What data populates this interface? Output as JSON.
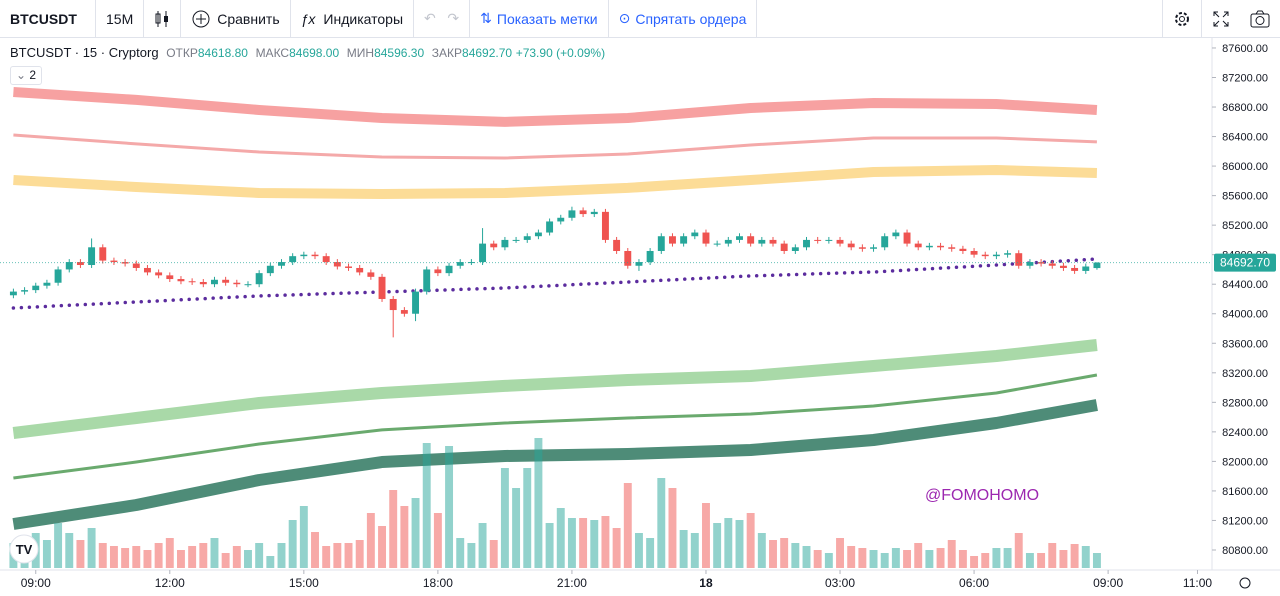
{
  "toolbar": {
    "symbol": "BTCUSDT",
    "interval": "15М",
    "compare": "Сравнить",
    "indicators": "Индикаторы",
    "show_marks": "Показать метки",
    "hide_orders": "Спрятать ордера"
  },
  "legend": {
    "title": "BTCUSDT · 15 · Cryptorg",
    "open_label": "ОТКР",
    "open": "84618.80",
    "high_label": "МАКС",
    "high": "84698.00",
    "low_label": "МИН",
    "low": "84596.30",
    "close_label": "ЗАКР",
    "close": "84692.70",
    "change": "+73.90 (+0.09%)",
    "indicators_count": "2"
  },
  "watermark": "@FOMOHOMO",
  "price_label": "84692.70",
  "chart_data": {
    "type": "candlestick",
    "up_color": "#26a69a",
    "down_color": "#ef5350",
    "open": [
      84250,
      84300,
      84320,
      84380,
      84420,
      84600,
      84700,
      84660,
      84900,
      84720,
      84700,
      84680,
      84620,
      84560,
      84520,
      84470,
      84440,
      84430,
      84400,
      84460,
      84420,
      84400,
      84400,
      84550,
      84650,
      84700,
      84780,
      84800,
      84780,
      84700,
      84640,
      84620,
      84560,
      84500,
      84200,
      84050,
      84000,
      84300,
      84600,
      84550,
      84650,
      84700,
      84700,
      84950,
      84900,
      85000,
      85000,
      85050,
      85100,
      85250,
      85300,
      85400,
      85350,
      85380,
      85000,
      84850,
      84650,
      84700,
      84850,
      85050,
      84950,
      85050,
      85100,
      84950,
      84950,
      85000,
      85050,
      84950,
      85000,
      84950,
      84850,
      84900,
      85000,
      84990,
      85000,
      84950,
      84900,
      84880,
      84900,
      85050,
      85100,
      84950,
      84900,
      84920,
      84900,
      84880,
      84850,
      84800,
      84780,
      84800,
      84820,
      84650,
      84700,
      84680,
      84650,
      84620,
      84580,
      84618.8
    ],
    "high": [
      84340,
      84360,
      84420,
      84460,
      84640,
      84740,
      84740,
      85020,
      84940,
      84760,
      84740,
      84720,
      84660,
      84600,
      84560,
      84510,
      84480,
      84470,
      84500,
      84500,
      84460,
      84440,
      84590,
      84690,
      84740,
      84820,
      84840,
      84840,
      84820,
      84740,
      84680,
      84660,
      84600,
      84540,
      84240,
      84090,
      84340,
      84640,
      84640,
      84690,
      84740,
      84740,
      85160,
      84990,
      85040,
      85040,
      85090,
      85140,
      85290,
      85340,
      85450,
      85440,
      85420,
      85420,
      85040,
      84890,
      84740,
      84890,
      85090,
      85090,
      85090,
      85140,
      85140,
      84990,
      85040,
      85090,
      85090,
      85040,
      85040,
      84990,
      84940,
      85040,
      85040,
      85040,
      85040,
      84990,
      84940,
      84940,
      85090,
      85140,
      85140,
      84990,
      84960,
      84960,
      84940,
      84920,
      84890,
      84840,
      84840,
      84860,
      84860,
      84740,
      84740,
      84720,
      84690,
      84660,
      84680,
      84698
    ],
    "low": [
      84210,
      84260,
      84280,
      84340,
      84380,
      84560,
      84620,
      84620,
      84680,
      84660,
      84640,
      84580,
      84520,
      84480,
      84430,
      84400,
      84390,
      84360,
      84360,
      84380,
      84360,
      84360,
      84360,
      84510,
      84610,
      84660,
      84740,
      84740,
      84660,
      84600,
      84580,
      84520,
      84460,
      84160,
      83680,
      83960,
      83900,
      84260,
      84510,
      84510,
      84610,
      84660,
      84660,
      84860,
      84860,
      84960,
      84960,
      85010,
      85060,
      85210,
      85260,
      85310,
      85310,
      84960,
      84810,
      84610,
      84580,
      84660,
      84810,
      84910,
      84910,
      85010,
      84910,
      84910,
      84910,
      84960,
      84910,
      84910,
      84910,
      84810,
      84810,
      84860,
      84950,
      84950,
      84910,
      84860,
      84840,
      84840,
      84860,
      85010,
      84910,
      84860,
      84860,
      84860,
      84840,
      84810,
      84760,
      84740,
      84740,
      84760,
      84610,
      84610,
      84640,
      84610,
      84580,
      84540,
      84540,
      84596.3
    ],
    "close": [
      84300,
      84320,
      84380,
      84420,
      84600,
      84700,
      84660,
      84900,
      84720,
      84700,
      84680,
      84620,
      84560,
      84520,
      84470,
      84440,
      84430,
      84400,
      84460,
      84420,
      84400,
      84400,
      84550,
      84650,
      84700,
      84780,
      84800,
      84780,
      84700,
      84640,
      84620,
      84560,
      84500,
      84200,
      84050,
      84000,
      84300,
      84600,
      84550,
      84650,
      84700,
      84700,
      84950,
      84900,
      85000,
      85000,
      85050,
      85100,
      85250,
      85300,
      85400,
      85350,
      85380,
      85000,
      84850,
      84650,
      84700,
      84850,
      85050,
      84950,
      85050,
      85100,
      84950,
      84950,
      85000,
      85050,
      84950,
      85000,
      84950,
      84850,
      84900,
      85000,
      84990,
      85000,
      84950,
      84900,
      84880,
      84900,
      85050,
      85100,
      84950,
      84900,
      84920,
      84900,
      84880,
      84850,
      84800,
      84780,
      84800,
      84820,
      84650,
      84700,
      84680,
      84650,
      84620,
      84580,
      84640,
      84692.7
    ],
    "volume": [
      25,
      30,
      35,
      28,
      45,
      35,
      28,
      40,
      25,
      22,
      20,
      22,
      18,
      25,
      30,
      18,
      22,
      25,
      30,
      15,
      22,
      18,
      25,
      12,
      25,
      48,
      62,
      36,
      22,
      25,
      25,
      28,
      55,
      42,
      78,
      62,
      70,
      125,
      55,
      122,
      30,
      25,
      45,
      28,
      100,
      80,
      100,
      130,
      45,
      60,
      50,
      50,
      48,
      52,
      40,
      85,
      35,
      30,
      90,
      80,
      38,
      35,
      65,
      45,
      50,
      48,
      55,
      35,
      28,
      30,
      25,
      22,
      18,
      15,
      30,
      22,
      20,
      18,
      15,
      20,
      18,
      25,
      18,
      20,
      28,
      18,
      12,
      15,
      20,
      20,
      35,
      15,
      15,
      25,
      18,
      24,
      22,
      15
    ],
    "band_x": [
      0,
      11,
      22,
      33,
      44,
      55,
      66,
      77,
      88,
      97
    ],
    "bands": [
      {
        "color": "#f7a1a1",
        "width": 10,
        "values": [
          87004,
          86896,
          86760,
          86652,
          86598,
          86652,
          86787,
          86855,
          86841,
          86760
        ]
      },
      {
        "color": "#f4a9a9",
        "width": 3,
        "values": [
          86421,
          86300,
          86191,
          86123,
          86110,
          86164,
          86286,
          86381,
          86381,
          86327
        ]
      },
      {
        "color": "#fcdc97",
        "width": 10,
        "values": [
          85812,
          85717,
          85636,
          85622,
          85636,
          85704,
          85812,
          85920,
          85947,
          85907
        ]
      },
      {
        "color": "#a9d9a8",
        "width": 12,
        "values": [
          82385,
          82588,
          82791,
          82927,
          83022,
          83103,
          83157,
          83292,
          83428,
          83577
        ]
      },
      {
        "color": "#6aaa6e",
        "width": 3,
        "values": [
          81775,
          81992,
          82236,
          82426,
          82520,
          82588,
          82642,
          82751,
          82927,
          83170
        ]
      },
      {
        "color": "#4e8c78",
        "width": 12,
        "values": [
          81152,
          81409,
          81748,
          81992,
          82073,
          82100,
          82155,
          82290,
          82520,
          82764
        ]
      },
      {
        "color": "#5b2c9e",
        "width": 3.5,
        "dotted": true,
        "values": [
          84078,
          84159,
          84241,
          84295,
          84349,
          84430,
          84512,
          84566,
          84660,
          84742
        ]
      }
    ],
    "xlim": [
      -1.2,
      107.3
    ],
    "ylim": [
      80556,
      87735
    ],
    "xticks": [
      {
        "value": 2,
        "label": "09:00"
      },
      {
        "value": 14,
        "label": "12:00"
      },
      {
        "value": 26,
        "label": "15:00"
      },
      {
        "value": 38,
        "label": "18:00"
      },
      {
        "value": 50,
        "label": "21:00"
      },
      {
        "value": 62,
        "label": "18"
      },
      {
        "value": 74,
        "label": "03:00"
      },
      {
        "value": 86,
        "label": "06:00"
      },
      {
        "value": 98,
        "label": "09:00"
      },
      {
        "value": 106,
        "label": "11:00"
      }
    ],
    "yticks": [
      {
        "value": 87600,
        "label": "87600.00"
      },
      {
        "value": 87200,
        "label": "87200.00"
      },
      {
        "value": 86800,
        "label": "86800.00"
      },
      {
        "value": 86400,
        "label": "86400.00"
      },
      {
        "value": 86000,
        "label": "86000.00"
      },
      {
        "value": 85600,
        "label": "85600.00"
      },
      {
        "value": 85200,
        "label": "85200.00"
      },
      {
        "value": 84800,
        "label": "84800.00"
      },
      {
        "value": 84400,
        "label": "84400.00"
      },
      {
        "value": 84000,
        "label": "84000.00"
      },
      {
        "value": 83600,
        "label": "83600.00"
      },
      {
        "value": 83200,
        "label": "83200.00"
      },
      {
        "value": 82800,
        "label": "82800.00"
      },
      {
        "value": 82400,
        "label": "82400.00"
      },
      {
        "value": 82000,
        "label": "82000.00"
      },
      {
        "value": 81600,
        "label": "81600.00"
      },
      {
        "value": 81200,
        "label": "81200.00"
      },
      {
        "value": 80800,
        "label": "80800.00"
      }
    ]
  }
}
